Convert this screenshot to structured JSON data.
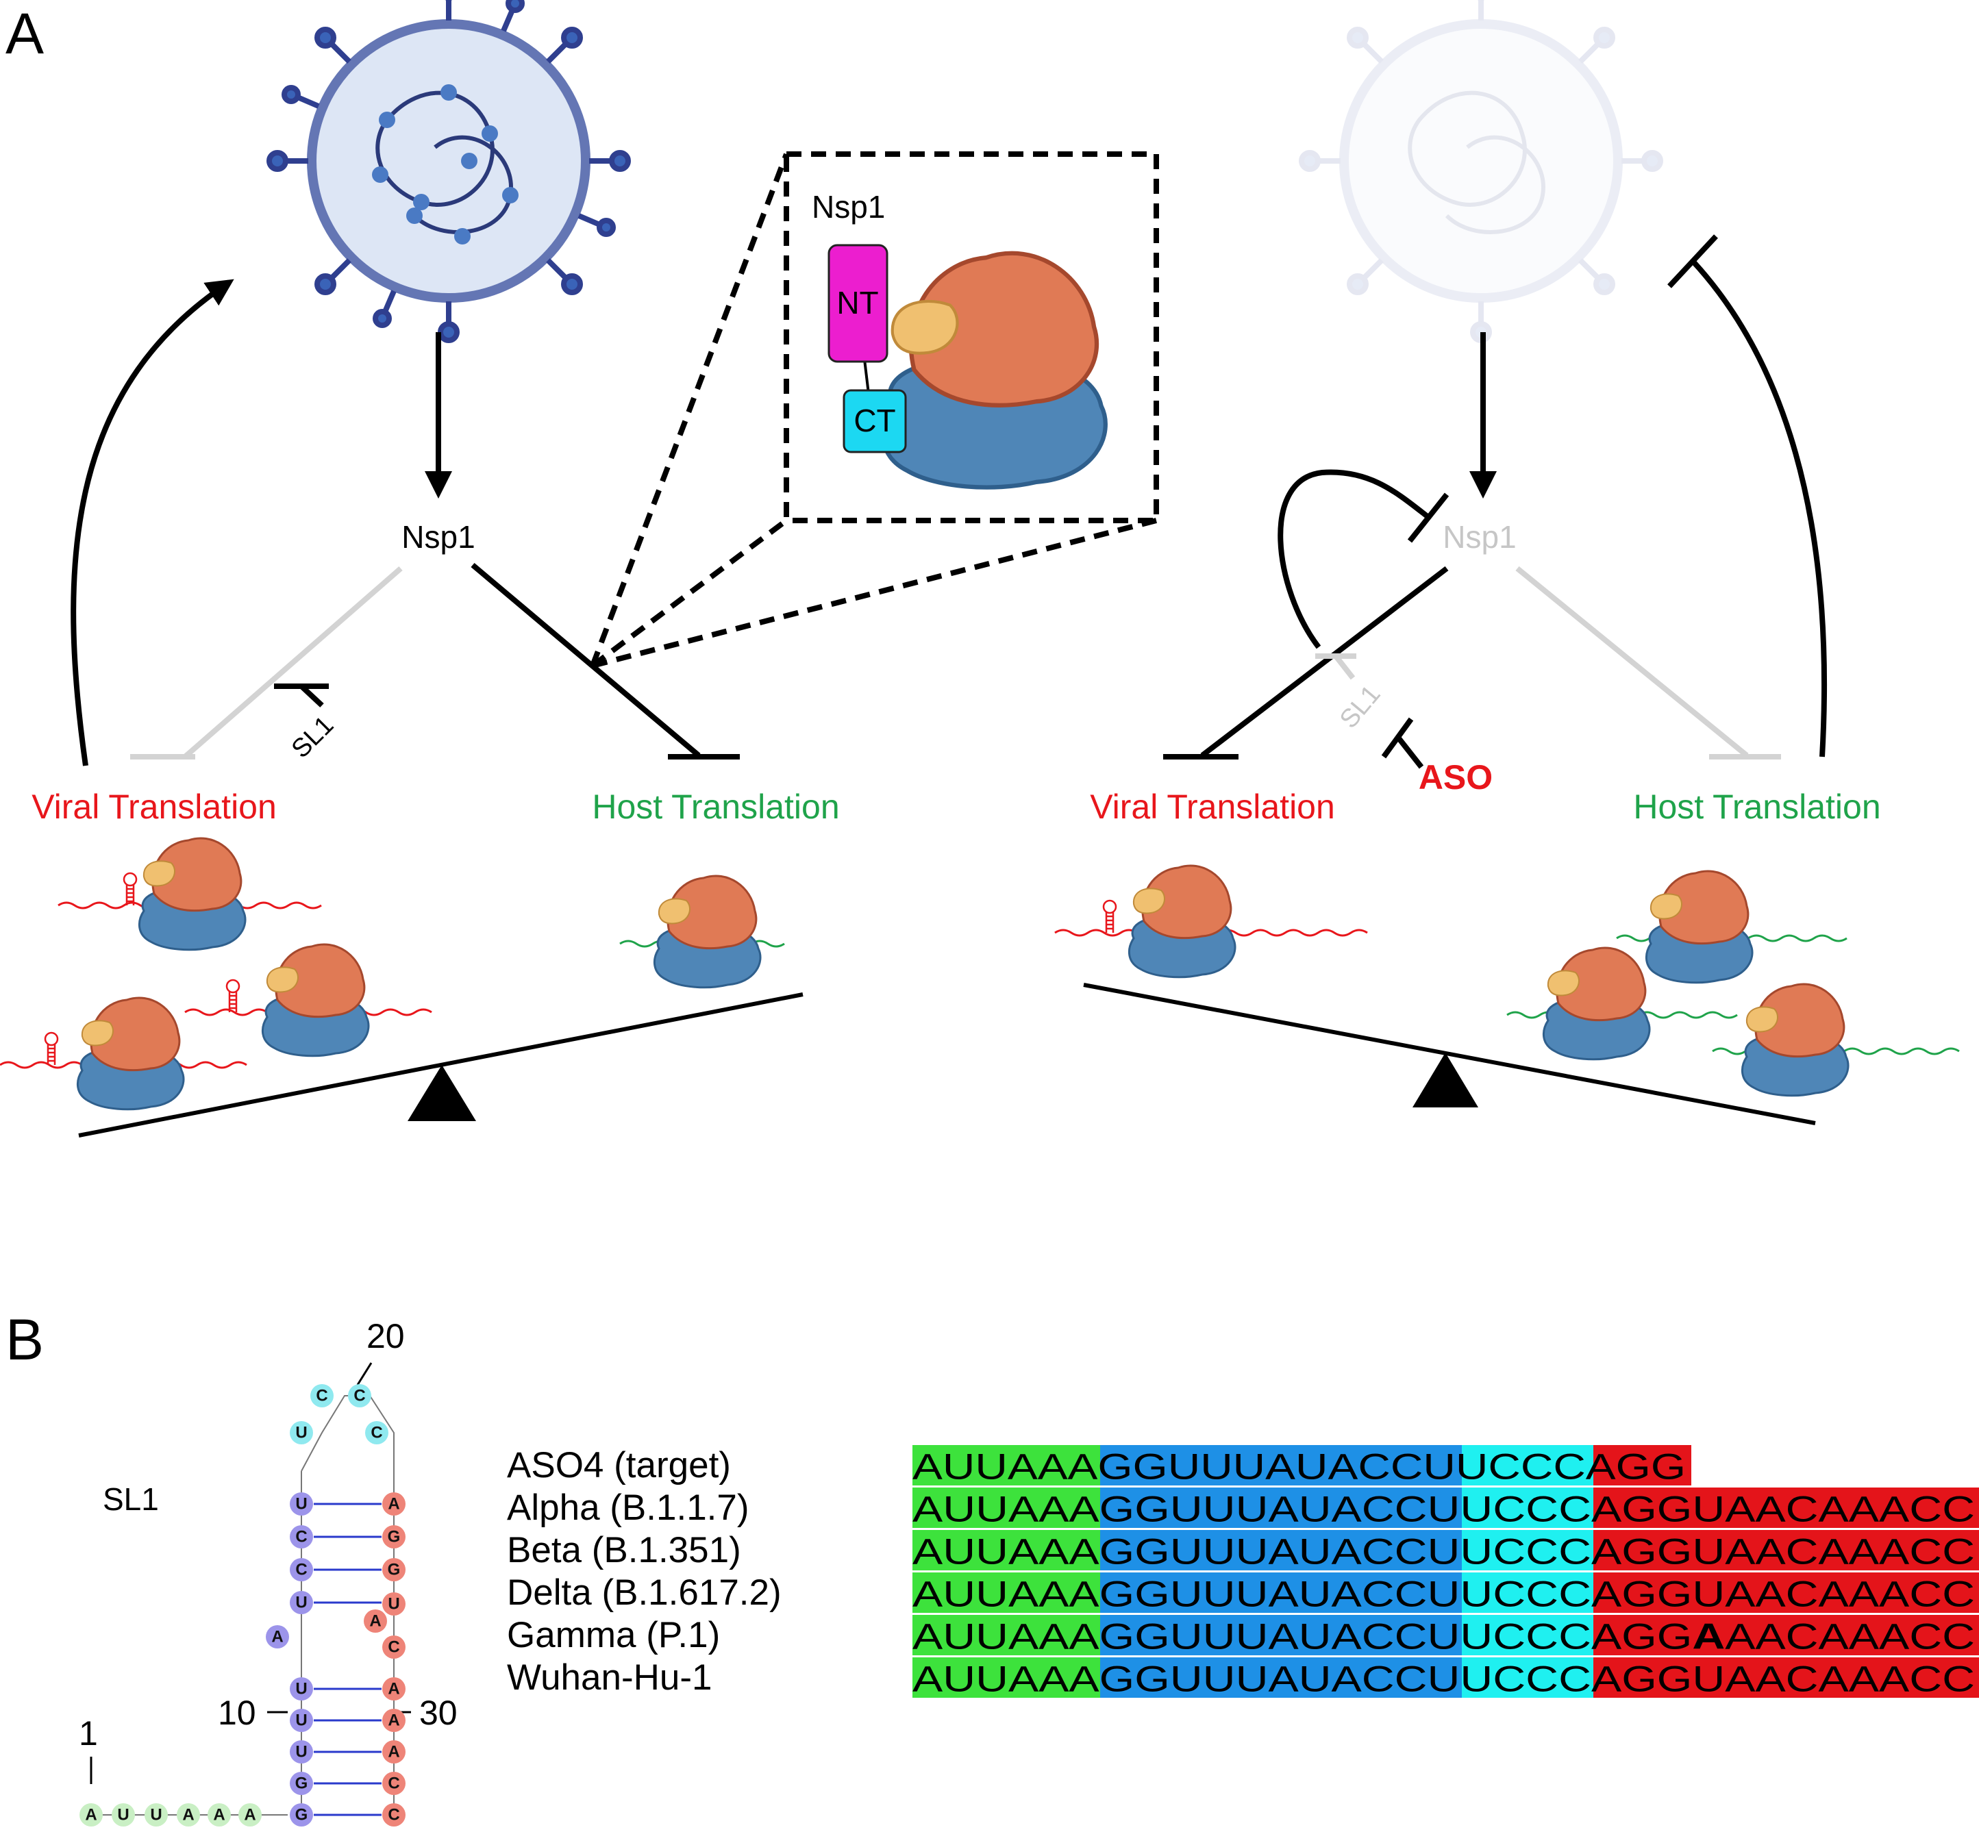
{
  "colors": {
    "viral": "#e8161b",
    "host": "#1fa34a",
    "aso": "#e8161b",
    "inhibited": "#d3d3d3",
    "nt_domain": "#ec1ecf",
    "ct_domain": "#1cd8f2",
    "seg_green": "#3de23c",
    "seg_blue": "#1e90e6",
    "seg_cyan": "#1ff0f0",
    "seg_red": "#e4141a",
    "nuc_green": "#c9efc4",
    "nuc_purple": "#9c94ea",
    "nuc_cyan": "#8fe9ef",
    "nuc_red": "#ee8478"
  },
  "panel_a": {
    "label": "A",
    "left": {
      "nsp1": "Nsp1",
      "sl1": "SL1",
      "viral_translation": "Viral Translation",
      "host_translation": "Host Translation"
    },
    "inset": {
      "title": "Nsp1",
      "nt": "NT",
      "ct": "CT"
    },
    "right": {
      "nsp1": "Nsp1",
      "sl1": "SL1",
      "aso": "ASO",
      "viral_translation": "Viral Translation",
      "host_translation": "Host Translation"
    }
  },
  "panel_b": {
    "label": "B",
    "sl1_title": "SL1",
    "numbers": {
      "n1": "1",
      "n10": "10",
      "n20": "20",
      "n30": "30"
    },
    "hairpin": {
      "tail": [
        "A",
        "U",
        "U",
        "A",
        "A",
        "A"
      ],
      "stem_left": [
        "G",
        "G",
        "U",
        "U",
        "U",
        "A",
        "U",
        "C",
        "C",
        "U"
      ],
      "stem_right": [
        "C",
        "C",
        "A",
        "A",
        "A",
        "C",
        "A",
        "U",
        "G",
        "G",
        "A"
      ],
      "loop": [
        "U",
        "C",
        "C",
        "C"
      ],
      "bulge": "A"
    },
    "alignment": {
      "rows": [
        {
          "name": "ASO4 (target)",
          "green": "AUUAAA",
          "blue": "GGUUUAUACCU",
          "cyan": "UCCC",
          "red": "AGG",
          "mut": "",
          "red_tail": ""
        },
        {
          "name": "Alpha (B.1.1.7)",
          "green": "AUUAAA",
          "blue": "GGUUUAUACCU",
          "cyan": "UCCC",
          "red": "AGGU",
          "mut": "",
          "red_tail": "AACAAACC"
        },
        {
          "name": "Beta  (B.1.351)",
          "green": "AUUAAA",
          "blue": "GGUUUAUACCU",
          "cyan": "UCCC",
          "red": "AGGU",
          "mut": "",
          "red_tail": "AACAAACC"
        },
        {
          "name": "Delta (B.1.617.2)",
          "green": "AUUAAA",
          "blue": "GGUUUAUACCU",
          "cyan": "UCCC",
          "red": "AGGU",
          "mut": "",
          "red_tail": "AACAAACC"
        },
        {
          "name": "Gamma (P.1)",
          "green": "AUUAAA",
          "blue": "GGUUUAUACCU",
          "cyan": "UCCC",
          "red": "AGG",
          "mut": "A",
          "red_tail": "AACAAACC"
        },
        {
          "name": "Wuhan-Hu-1",
          "green": "AUUAAA",
          "blue": "GGUUUAUACCU",
          "cyan": "UCCC",
          "red": "AGGU",
          "mut": "",
          "red_tail": "AACAAACC"
        }
      ]
    }
  }
}
